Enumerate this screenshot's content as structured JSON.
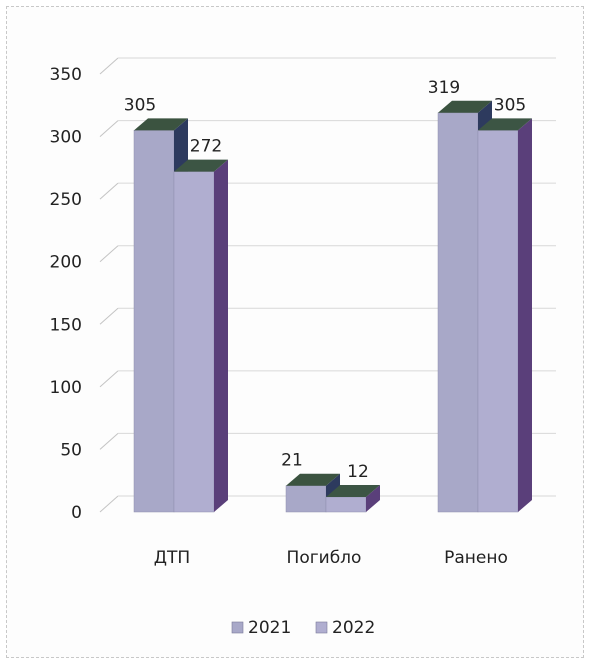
{
  "chart_data": {
    "type": "bar",
    "title": "",
    "xlabel": "",
    "ylabel": "",
    "categories": [
      "ДТП",
      "Погибло",
      "Ранено"
    ],
    "series": [
      {
        "name": "2021",
        "values": [
          305,
          21,
          319
        ],
        "color": "#a8a8c8"
      },
      {
        "name": "2022",
        "values": [
          272,
          12,
          305
        ],
        "color": "#b0aed0"
      }
    ],
    "ylim": [
      0,
      350
    ],
    "yticks": [
      "0",
      "50",
      "100",
      "150",
      "200",
      "250",
      "300",
      "350"
    ],
    "grid": true,
    "legend_position": "bottom",
    "style": "3d-column"
  }
}
